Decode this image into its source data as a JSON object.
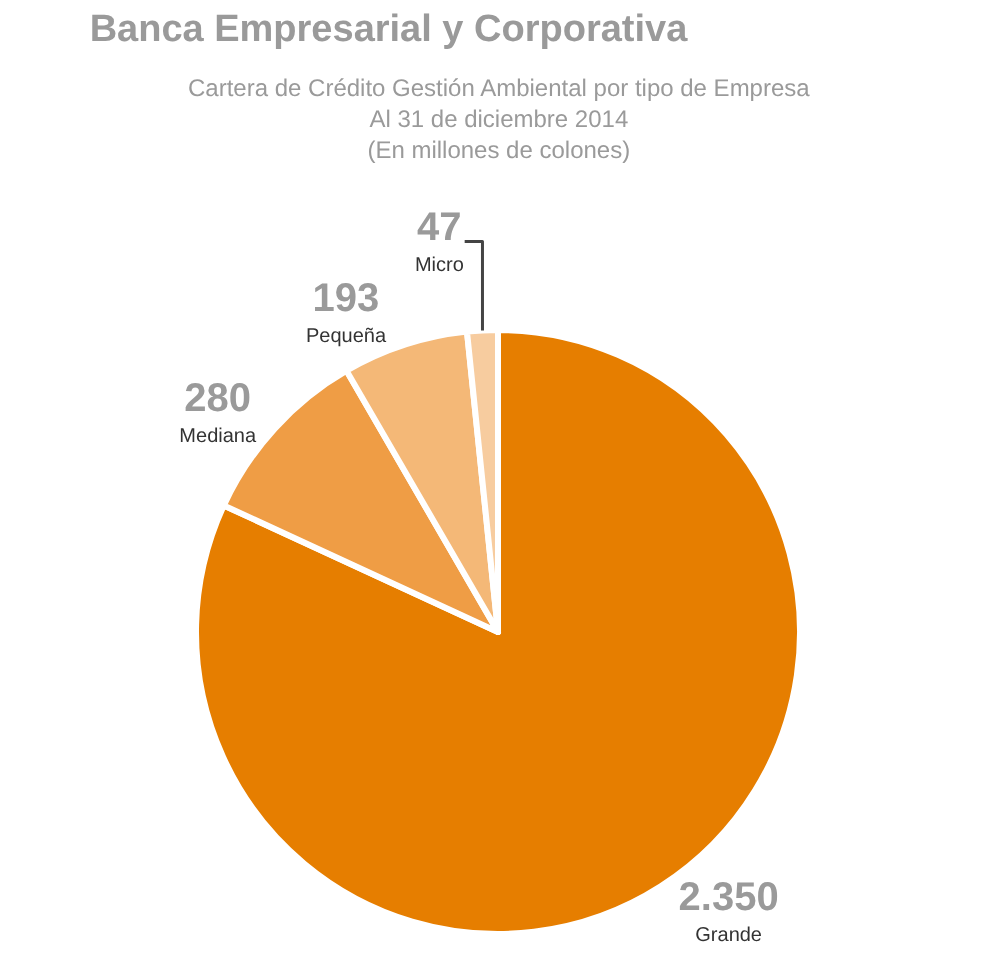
{
  "chart_data": {
    "type": "pie",
    "title": "Banca Empresarial y Corporativa",
    "subtitle": "Cartera de Crédito Gestión Ambiental por tipo de Empresa\nAl 31 de diciembre 2014\n(En millones de colones)",
    "categories": [
      "Grande",
      "Mediana",
      "Pequeña",
      "Micro"
    ],
    "values": [
      2350,
      280,
      193,
      47
    ],
    "value_labels": [
      "2.350",
      "280",
      "193",
      "47"
    ],
    "colors": [
      "#e67e00",
      "#ef9d45",
      "#f4b877",
      "#f7cc9f"
    ],
    "legend": false
  }
}
